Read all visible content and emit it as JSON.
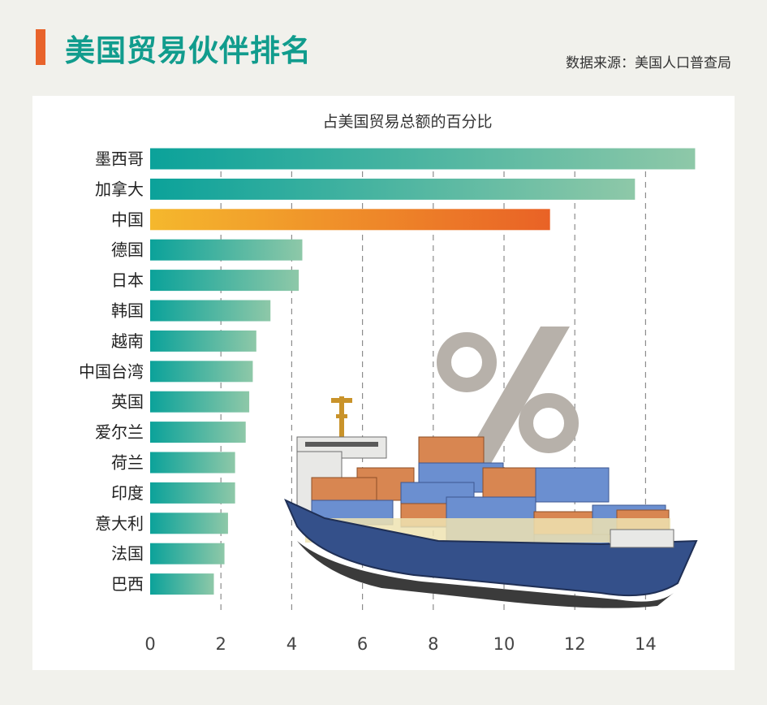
{
  "header": {
    "title": "美国贸易伙伴排名",
    "source": "数据来源：美国人口普查局"
  },
  "colors": {
    "accent": "#e8632b",
    "title": "#119c8d",
    "bar_teal_start": "#0ba29a",
    "bar_teal_end": "#8ec8a8",
    "bar_highlight_start": "#f5b82d",
    "bar_highlight_end": "#e96226"
  },
  "chart_data": {
    "type": "bar",
    "orientation": "horizontal",
    "title": "占美国贸易总额的百分比",
    "categories": [
      "墨西哥",
      "加拿大",
      "中国",
      "德国",
      "日本",
      "韩国",
      "越南",
      "中国台湾",
      "英国",
      "爱尔兰",
      "荷兰",
      "印度",
      "意大利",
      "法国",
      "巴西"
    ],
    "values": [
      15.4,
      13.7,
      11.3,
      4.3,
      4.2,
      3.4,
      3.0,
      2.9,
      2.8,
      2.7,
      2.4,
      2.4,
      2.2,
      2.1,
      1.8
    ],
    "highlight": "中国",
    "xlim": [
      0,
      15.5
    ],
    "xticks": [
      0,
      2,
      4,
      6,
      8,
      10,
      12,
      14
    ],
    "grid": "vertical-dashed",
    "xlabel": "",
    "ylabel": ""
  }
}
